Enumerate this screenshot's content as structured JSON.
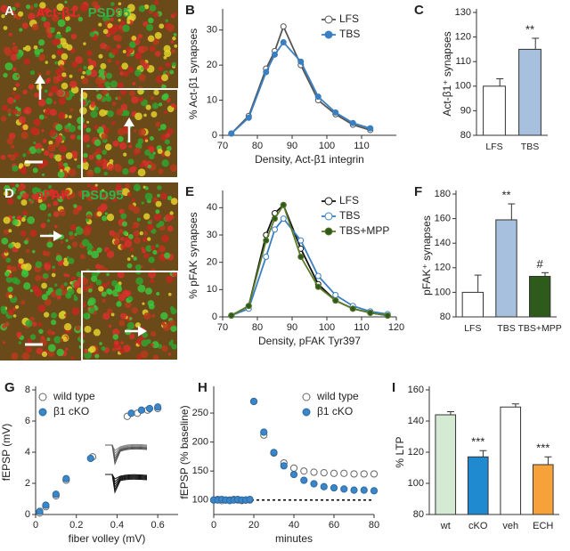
{
  "images": [
    {
      "panel": "A",
      "labels": [
        {
          "text": "Act-β1",
          "color": "#e8262a"
        },
        {
          "text": "PSD95",
          "color": "#2fb34a"
        }
      ]
    },
    {
      "panel": "D",
      "labels": [
        {
          "text": "pFAK",
          "color": "#e8262a"
        },
        {
          "text": "PSD95",
          "color": "#2fb34a"
        }
      ]
    }
  ],
  "chart_data": [
    {
      "type": "line",
      "panel": "B",
      "xlabel": "Density, Act-β1 integrin",
      "ylabel": "% Act-β1 synapses",
      "x": [
        72.5,
        77.5,
        82.5,
        85,
        87.5,
        92.5,
        97.5,
        102.5,
        107.5,
        112.5
      ],
      "series": [
        {
          "name": "LFS",
          "color": "#555555",
          "marker": "#ffffff",
          "values": [
            0.5,
            5.5,
            19,
            24,
            31,
            20,
            10,
            6,
            3,
            1.5
          ]
        },
        {
          "name": "TBS",
          "color": "#3a7fc1",
          "marker": "#3a7fc1",
          "values": [
            0.5,
            5,
            18,
            23,
            26.5,
            21,
            11,
            6.5,
            3.5,
            2
          ]
        }
      ],
      "xlim": [
        70,
        120
      ],
      "xticks": [
        70,
        80,
        90,
        100,
        110
      ],
      "ylim": [
        0,
        35
      ],
      "yticks": [
        0,
        10,
        20,
        30
      ],
      "legend": "upper right"
    },
    {
      "type": "bar",
      "panel": "C",
      "ylabel": "Act-β1⁺ synapses",
      "categories": [
        "LFS",
        "TBS"
      ],
      "values": [
        100,
        115
      ],
      "errors": [
        3,
        4.5
      ],
      "colors": [
        "#ffffff",
        "#a7c0de"
      ],
      "annotations": [
        null,
        "**"
      ],
      "ylim": [
        80,
        130
      ],
      "yticks": [
        80,
        90,
        100,
        110,
        120,
        130
      ]
    },
    {
      "type": "line",
      "panel": "E",
      "xlabel": "Density, pFAK Tyr397",
      "ylabel": "% pFAK synapses",
      "x": [
        72.5,
        77.5,
        82.5,
        85,
        87.5,
        92.5,
        97.5,
        102.5,
        107.5,
        112.5,
        117.5
      ],
      "series": [
        {
          "name": "LFS",
          "color": "#111111",
          "marker": "#ffffff",
          "values": [
            0.5,
            4,
            30,
            38,
            41,
            25,
            12,
            6,
            3,
            1.5,
            0.5
          ]
        },
        {
          "name": "TBS",
          "color": "#3a7fc1",
          "marker": "#ffffff",
          "values": [
            0.5,
            3,
            22,
            32,
            36,
            28,
            15,
            8,
            4,
            2,
            1
          ]
        },
        {
          "name": "TBS+MPP",
          "color": "#5b7a2a",
          "marker": "#2e5a1c",
          "values": [
            0.5,
            4,
            28,
            36,
            41,
            22,
            11,
            6,
            3,
            1.5,
            0.5
          ]
        }
      ],
      "xlim": [
        70,
        120
      ],
      "xticks": [
        70,
        80,
        90,
        100,
        110,
        120
      ],
      "ylim": [
        0,
        45
      ],
      "yticks": [
        0,
        10,
        20,
        30,
        40
      ],
      "legend": "upper right"
    },
    {
      "type": "bar",
      "panel": "F",
      "ylabel": "pFAK⁺ synapses",
      "categories": [
        "LFS",
        "TBS",
        "TBS+MPP"
      ],
      "values": [
        100,
        159,
        113
      ],
      "errors": [
        14,
        13,
        3
      ],
      "colors": [
        "#ffffff",
        "#a7c0de",
        "#2e5a1c"
      ],
      "annotations": [
        null,
        "**",
        "#"
      ],
      "ylim": [
        80,
        180
      ],
      "yticks": [
        80,
        100,
        120,
        140,
        160,
        180
      ]
    },
    {
      "type": "scatter",
      "panel": "G",
      "xlabel": "fiber volley (mV)",
      "ylabel": "fEPSP (mV)",
      "series": [
        {
          "name": "wild type",
          "color": "#666666",
          "marker": "#ffffff",
          "x": [
            0.02,
            0.05,
            0.1,
            0.15,
            0.28,
            0.45,
            0.5,
            0.55,
            0.6
          ],
          "values": [
            0.1,
            0.5,
            1.2,
            2.2,
            3.7,
            6.3,
            6.5,
            6.7,
            6.8
          ]
        },
        {
          "name": "β1 cKO",
          "color": "#2a6aa8",
          "marker": "#3d86c6",
          "x": [
            0.02,
            0.05,
            0.1,
            0.15,
            0.27,
            0.47,
            0.52,
            0.56,
            0.6
          ],
          "values": [
            0.2,
            0.6,
            1.3,
            2.3,
            3.6,
            6.5,
            6.7,
            6.8,
            6.9
          ]
        }
      ],
      "xlim": [
        0,
        0.7
      ],
      "xticks": [
        0,
        0.2,
        0.4,
        0.6
      ],
      "ylim": [
        0,
        8
      ],
      "yticks": [
        0,
        2,
        4,
        6,
        8
      ],
      "legend": "upper left"
    },
    {
      "type": "scatter",
      "panel": "H",
      "xlabel": "minutes",
      "ylabel": "fEPSP (% baseline)",
      "x": [
        0,
        2,
        4,
        6,
        8,
        10,
        12,
        14,
        16,
        18,
        20,
        25,
        30,
        35,
        40,
        45,
        50,
        55,
        60,
        65,
        70,
        75,
        80
      ],
      "series": [
        {
          "name": "wild type",
          "color": "#666666",
          "marker": "#ffffff",
          "values": [
            100,
            101,
            99,
            100,
            100,
            101,
            100,
            99,
            100,
            100,
            270,
            212,
            181,
            164,
            155,
            150,
            148,
            147,
            146,
            146,
            145,
            145,
            145
          ]
        },
        {
          "name": "β1 cKO",
          "color": "#2a6aa8",
          "marker": "#3d86c6",
          "values": [
            100,
            100,
            101,
            100,
            99,
            100,
            101,
            100,
            100,
            101,
            270,
            217,
            182,
            159,
            144,
            134,
            128,
            123,
            121,
            119,
            117,
            117,
            116
          ]
        }
      ],
      "reference_line": 100,
      "xlim": [
        0,
        80
      ],
      "xticks": [
        0,
        20,
        40,
        60,
        80
      ],
      "ylim": [
        75,
        290
      ],
      "yticks": [
        100,
        150,
        200,
        250
      ],
      "legend": "upper right"
    },
    {
      "type": "bar",
      "panel": "I",
      "ylabel": "% LTP",
      "categories": [
        "wt",
        "cKO",
        "veh",
        "ECH"
      ],
      "values": [
        144,
        117,
        149,
        112
      ],
      "errors": [
        2,
        4,
        2,
        5
      ],
      "colors": [
        "#d5ead3",
        "#1f8ad0",
        "#ffffff",
        "#f7a13a"
      ],
      "annotations": [
        null,
        "***",
        null,
        "***"
      ],
      "ylim": [
        80,
        160
      ],
      "yticks": [
        80,
        100,
        120,
        140,
        160
      ]
    }
  ]
}
